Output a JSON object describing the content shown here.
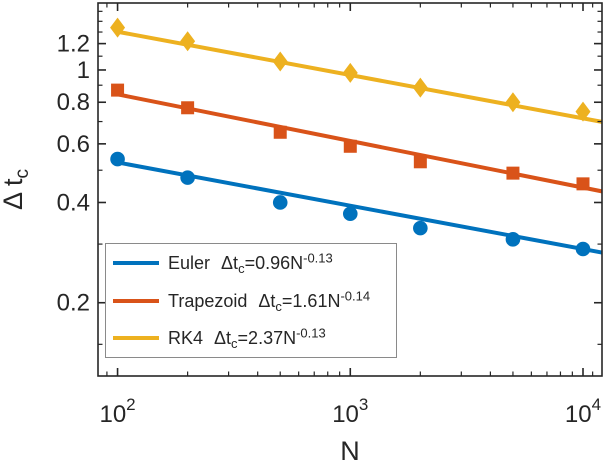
{
  "figure": {
    "background": "#FFFFFF",
    "axis_color": "#262626",
    "text_color": "#262626"
  },
  "chart_data": {
    "type": "line",
    "title": "",
    "xlabel": "N",
    "ylabel": {
      "text": "Δ t",
      "sub": "c"
    },
    "x_scale": "log",
    "y_scale": "log",
    "xlim": [
      82.4,
      12068
    ],
    "ylim": [
      0.1205,
      1.589
    ],
    "grid": "off",
    "box": "on",
    "x_major_ticks": [
      {
        "value": 100,
        "base": "10",
        "exp": "2"
      },
      {
        "value": 1000,
        "base": "10",
        "exp": "3"
      },
      {
        "value": 10000,
        "base": "10",
        "exp": "4"
      }
    ],
    "x_minor_ticks": [
      90,
      200,
      300,
      400,
      500,
      600,
      700,
      800,
      900,
      2000,
      3000,
      4000,
      5000,
      6000,
      7000,
      8000,
      9000,
      11000
    ],
    "y_major_ticks": [
      {
        "value": 0.2,
        "label": "0.2"
      },
      {
        "value": 0.4,
        "label": "0.4"
      },
      {
        "value": 0.6,
        "label": "0.6"
      },
      {
        "value": 0.8,
        "label": "0.8"
      },
      {
        "value": 1,
        "label": "1"
      },
      {
        "value": 1.2,
        "label": "1.2"
      }
    ],
    "y_minor_ticks": [
      0.15,
      0.3,
      0.5,
      0.7,
      0.9,
      1.1,
      1.3,
      1.4,
      1.5
    ],
    "x": [
      100,
      200,
      500,
      1000,
      2000,
      5000,
      10000
    ],
    "series": [
      {
        "name": "Euler",
        "color": "#0072BD",
        "marker": "circle",
        "values": [
          0.54,
          0.475,
          0.4,
          0.37,
          0.335,
          0.31,
          0.29
        ],
        "fit": {
          "coefficient": 0.96,
          "exponent": -0.13
        },
        "legend_label": {
          "name": "Euler",
          "var": "Δt",
          "var_sub": "c",
          "equals": "=0.96N",
          "power": "-0.13"
        }
      },
      {
        "name": "Trapezoid",
        "color": "#D95319",
        "marker": "square",
        "values": [
          0.87,
          0.77,
          0.65,
          0.59,
          0.53,
          0.49,
          0.455
        ],
        "fit": {
          "coefficient": 1.61,
          "exponent": -0.14
        },
        "legend_label": {
          "name": "Trapezoid",
          "var": "Δt",
          "var_sub": "c",
          "equals": "=1.61N",
          "power": "-0.14"
        }
      },
      {
        "name": "RK4",
        "color": "#EDB120",
        "marker": "diamond",
        "values": [
          1.34,
          1.22,
          1.06,
          0.98,
          0.885,
          0.8,
          0.75
        ],
        "fit": {
          "coefficient": 2.37,
          "exponent": -0.13
        },
        "legend_label": {
          "name": "RK4",
          "var": "Δt",
          "var_sub": "c",
          "equals": "=2.37N",
          "power": "-0.13"
        }
      }
    ],
    "legend": {
      "position": "bottom-left",
      "border_color": "#8A8A8A",
      "background": "#FFFFFF"
    }
  }
}
